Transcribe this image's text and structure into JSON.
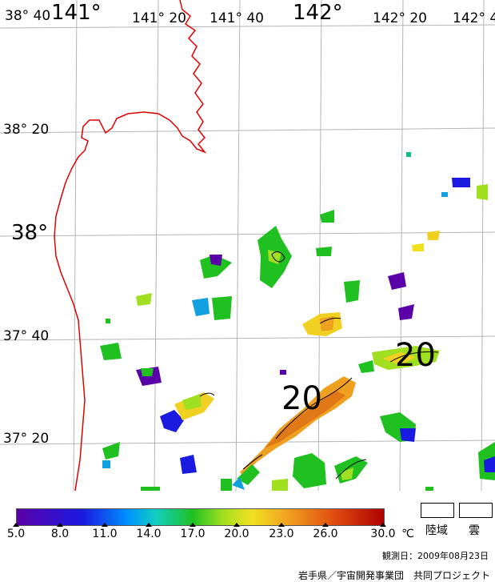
{
  "map": {
    "lon_labels": [
      "141°",
      "141° 20",
      "141° 40",
      "142°",
      "142° 20",
      "142° 4"
    ],
    "lat_labels": [
      "38° 40",
      "38° 20",
      "38°",
      "37° 40",
      "37° 20"
    ],
    "contour_labels": [
      "20",
      "20"
    ]
  },
  "colorbar": {
    "unit": "℃",
    "ticks": [
      "5.0",
      "8.0",
      "11.0",
      "14.0",
      "17.0",
      "20.0",
      "23.0",
      "26.0",
      "30.0"
    ]
  },
  "legend": {
    "land": "陸域",
    "cloud": "雲"
  },
  "observation_date": "観測日：2009年08月23日",
  "credit": "岩手県／宇宙開発事業団　共同プロジェクト",
  "colors": {
    "coastline": "#e00000",
    "grid": "#b0b0b0"
  }
}
